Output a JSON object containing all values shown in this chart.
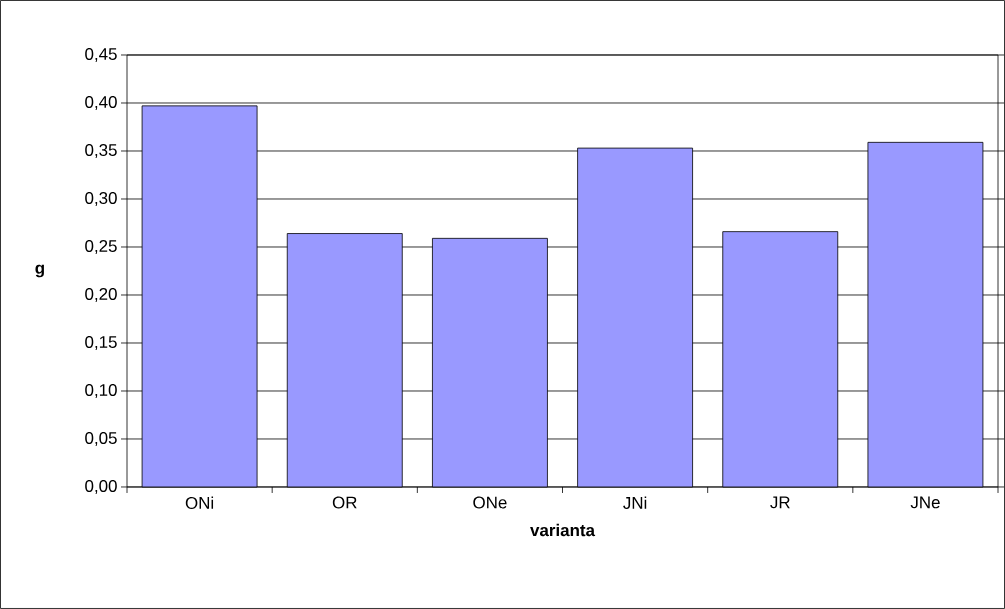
{
  "chart_data": {
    "type": "bar",
    "xlabel": "varianta",
    "ylabel": "g",
    "categories": [
      "ONi",
      "OR",
      "ONe",
      "JNi",
      "JR",
      "JNe"
    ],
    "values": [
      0.397,
      0.264,
      0.259,
      0.353,
      0.266,
      0.359
    ],
    "color": "#9999ff",
    "ylim": [
      0,
      0.45
    ],
    "yticks": [
      {
        "value": 0,
        "label": "0,00"
      },
      {
        "value": 0.05,
        "label": "0,05"
      },
      {
        "value": 0.1,
        "label": "0,10"
      },
      {
        "value": 0.15,
        "label": "0,15"
      },
      {
        "value": 0.2,
        "label": "0,20"
      },
      {
        "value": 0.25,
        "label": "0,25"
      },
      {
        "value": 0.3,
        "label": "0,30"
      },
      {
        "value": 0.35,
        "label": "0,35"
      },
      {
        "value": 0.4,
        "label": "0,40"
      },
      {
        "value": 0.45,
        "label": "0,45"
      }
    ],
    "grid": "y"
  }
}
